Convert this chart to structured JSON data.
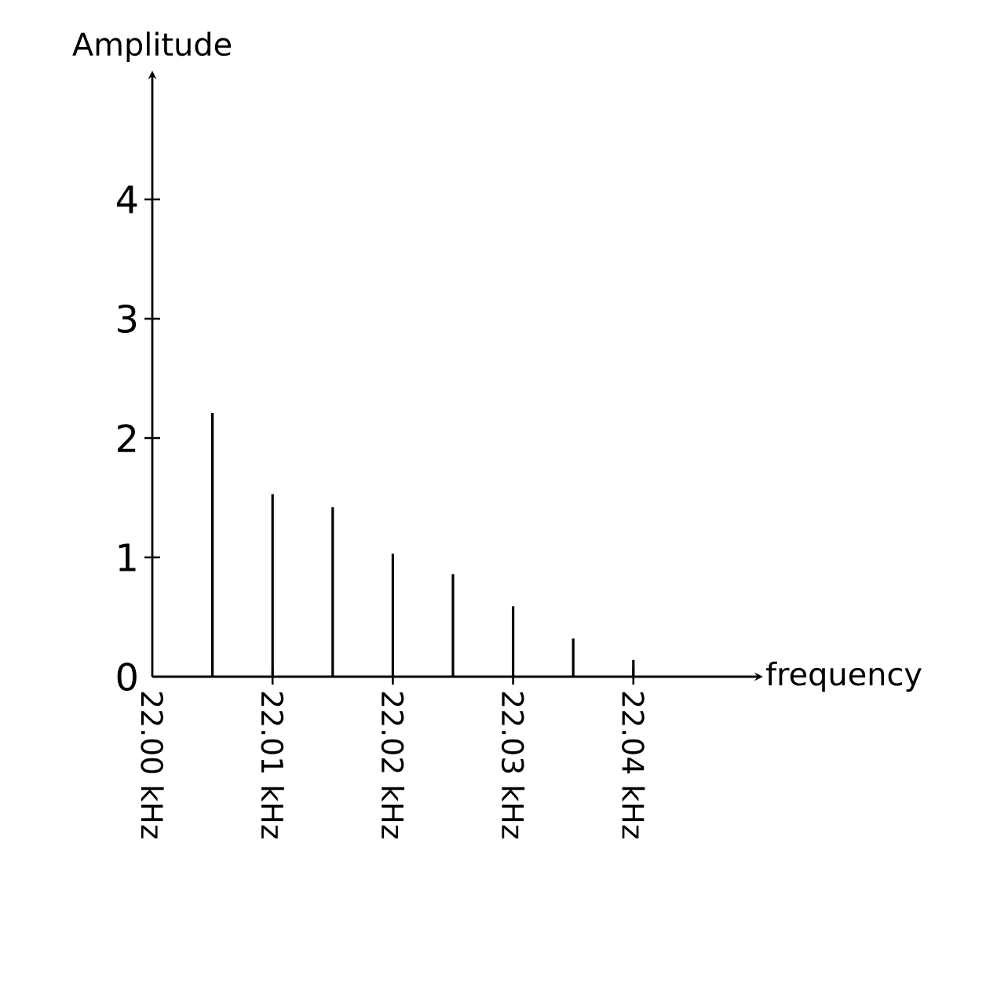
{
  "chart_data": {
    "type": "bar",
    "xlabel": "frequency",
    "ylabel": "Amplitude",
    "x": [
      22.005,
      22.01,
      22.015,
      22.02,
      22.025,
      22.03,
      22.035,
      22.04
    ],
    "values": [
      2.21,
      1.53,
      1.42,
      1.03,
      0.86,
      0.59,
      0.32,
      0.14
    ],
    "color": "#000000",
    "xlim": [
      22.0,
      22.05
    ],
    "ylim": [
      0,
      5
    ],
    "xticks": [
      {
        "value": 22.0,
        "label": "22.00 kHz"
      },
      {
        "value": 22.01,
        "label": "22.01 kHz"
      },
      {
        "value": 22.02,
        "label": "22.02 kHz"
      },
      {
        "value": 22.03,
        "label": "22.03 kHz"
      },
      {
        "value": 22.04,
        "label": "22.04 kHz"
      }
    ],
    "yticks": [
      0,
      1,
      2,
      3,
      4
    ]
  }
}
